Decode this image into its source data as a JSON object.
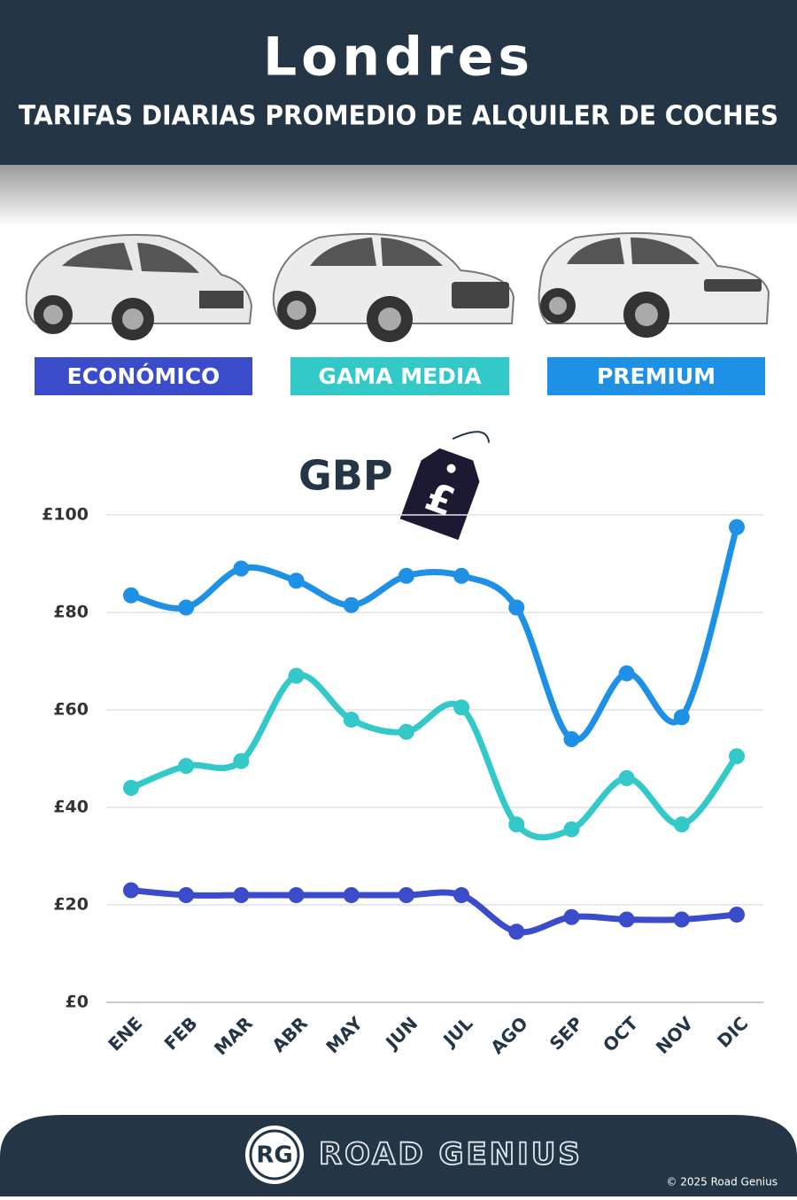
{
  "chart_data": {
    "type": "line",
    "title": "Londres",
    "subtitle": "TARIFAS DIARIAS PROMEDIO DE ALQUILER DE COCHES",
    "unit_label": "GBP",
    "categories": [
      "ENE",
      "FEB",
      "MAR",
      "ABR",
      "MAY",
      "JUN",
      "JUL",
      "AGO",
      "SEP",
      "OCT",
      "NOV",
      "DIC"
    ],
    "series": [
      {
        "name": "ECONÓMICO",
        "color": "#3b4cca",
        "values": [
          23,
          22,
          22,
          22,
          22,
          22,
          22,
          14.5,
          17.5,
          17,
          17,
          18
        ]
      },
      {
        "name": "GAMA MEDIA",
        "color": "#33c9c9",
        "values": [
          44,
          48.5,
          49.5,
          67,
          58,
          55.5,
          60.5,
          36.5,
          35.5,
          46,
          36.5,
          50.5
        ]
      },
      {
        "name": "PREMIUM",
        "color": "#1e90e6",
        "values": [
          83.5,
          81,
          89,
          86.5,
          81.5,
          87.5,
          87.5,
          81,
          54,
          67.5,
          58.5,
          97.5
        ]
      }
    ],
    "ylim": [
      0,
      100
    ],
    "yticks": [
      {
        "value": 0,
        "label": "£0"
      },
      {
        "value": 20,
        "label": "£20"
      },
      {
        "value": 40,
        "label": "£40"
      },
      {
        "value": 60,
        "label": "£60"
      },
      {
        "value": 80,
        "label": "£80"
      },
      {
        "value": 100,
        "label": "£100"
      }
    ],
    "grid": true
  },
  "footer": {
    "logo": "RG",
    "brand": "ROAD GENIUS",
    "copyright": "© 2025 Road Genius"
  }
}
